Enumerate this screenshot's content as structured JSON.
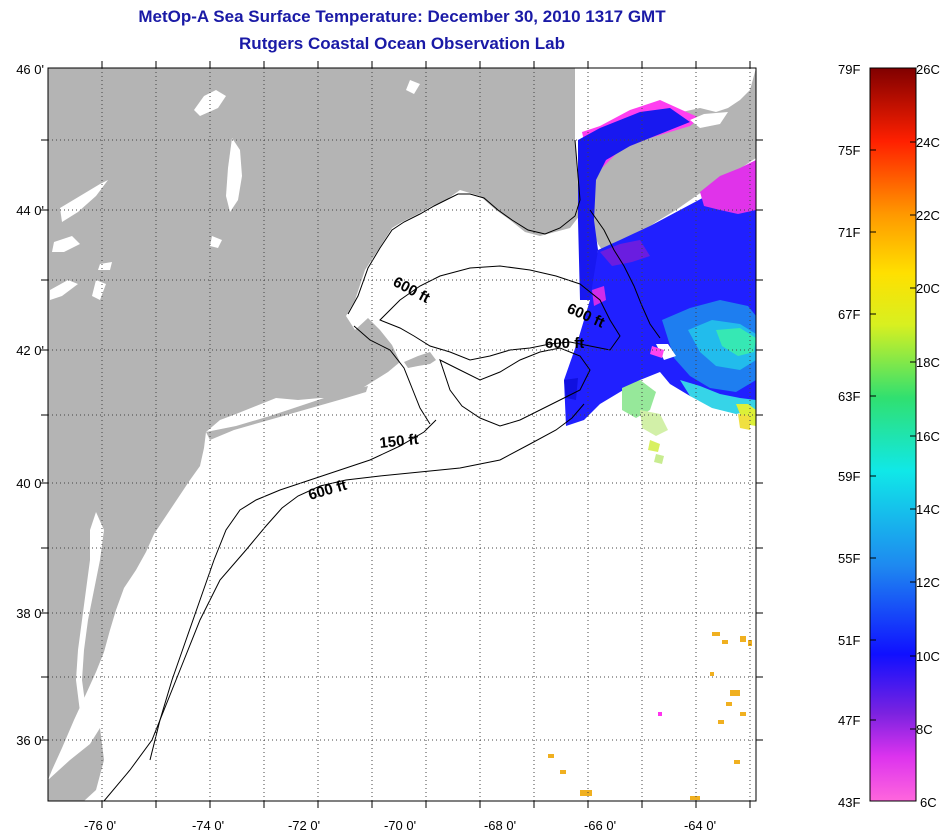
{
  "title": "MetOp-A Sea Surface Temperature:  December 30, 2010 1317 GMT",
  "subtitle": "Rutgers Coastal Ocean Observation Lab",
  "latitude_labels": [
    "46 0'",
    "44 0'",
    "42 0'",
    "40 0'",
    "38 0'",
    "36 0'"
  ],
  "longitude_labels": [
    "-76 0'",
    "-74 0'",
    "-72 0'",
    "-70 0'",
    "-68 0'",
    "-66 0'",
    "-64 0'"
  ],
  "contour_labels": [
    "600 ft",
    "600 ft",
    "600 ft",
    "150 ft",
    "600 ft"
  ],
  "colorbar": {
    "fahrenheit": [
      "79F",
      "75F",
      "71F",
      "67F",
      "63F",
      "59F",
      "55F",
      "51F",
      "47F",
      "43F"
    ],
    "celsius": [
      "26C",
      "24C",
      "22C",
      "20C",
      "18C",
      "16C",
      "14C",
      "12C",
      "10C",
      "8C",
      "6C"
    ]
  },
  "colors": {
    "title": "#1a1aa6",
    "land": "#b4b4b4",
    "ocean": "#ffffff"
  }
}
